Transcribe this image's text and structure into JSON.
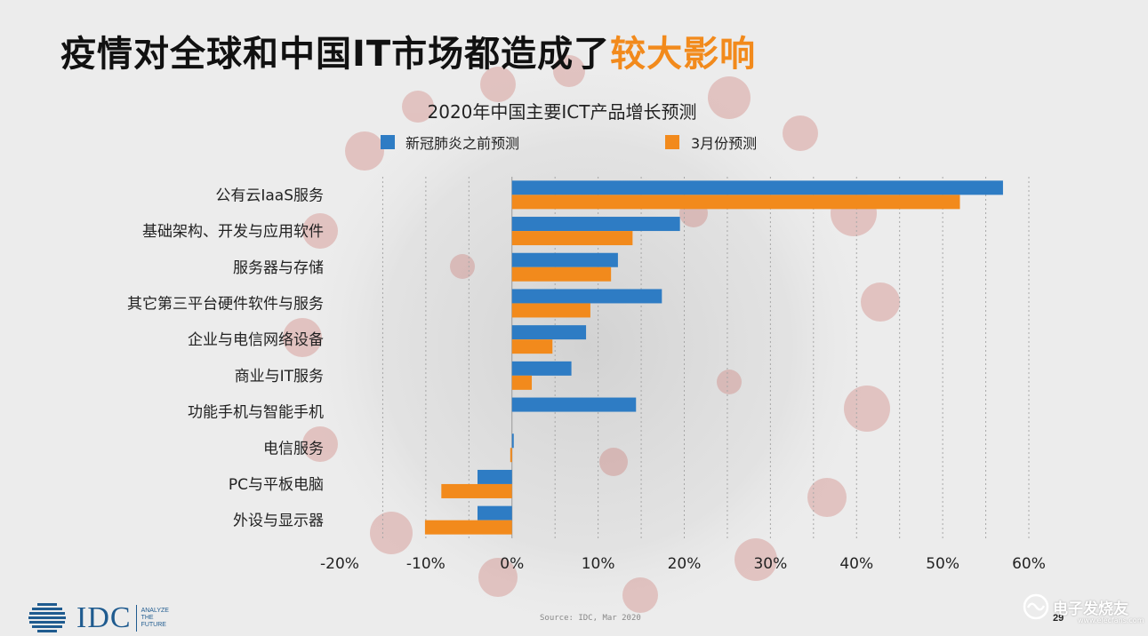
{
  "slide": {
    "title_main": "疫情对全球和中国IT市场都造成了",
    "title_accent": "较大影响",
    "source": "Source: IDC, Mar 2020",
    "page_number": "29"
  },
  "logo": {
    "name": "IDC",
    "tagline": "ANALYZE\nTHE\nFUTURE",
    "color": "#1f5b8f"
  },
  "watermark": {
    "text": "电子发烧友",
    "sub": "www.elecfans.com",
    "icon": "wave-logo-icon"
  },
  "chart_data": {
    "type": "bar",
    "orientation": "horizontal",
    "title": "2020年中国主要ICT产品增长预测",
    "categories": [
      "公有云IaaS服务",
      "基础架构、开发与应用软件",
      "服务器与存储",
      "其它第三平台硬件软件与服务",
      "企业与电信网络设备",
      "商业与IT服务",
      "功能手机与智能手机",
      "电信服务",
      "PC与平板电脑",
      "外设与显示器"
    ],
    "series": [
      {
        "name": "新冠肺炎之前预测",
        "color": "#2e7cc4",
        "values": [
          57,
          19.5,
          12.3,
          17.4,
          8.6,
          6.9,
          14.4,
          0.2,
          -4.0,
          -4.0
        ]
      },
      {
        "name": "3月份预测",
        "color": "#f28a1c",
        "values": [
          52,
          14,
          11.5,
          9.1,
          4.7,
          2.3,
          null,
          -0.2,
          -8.2,
          -10.1
        ]
      }
    ],
    "xlim": [
      -20,
      60
    ],
    "xticks": [
      -20,
      -10,
      0,
      10,
      20,
      30,
      40,
      50,
      60
    ],
    "tick_format": "percent",
    "grid": "vertical-dashed",
    "legend_position": "top"
  }
}
